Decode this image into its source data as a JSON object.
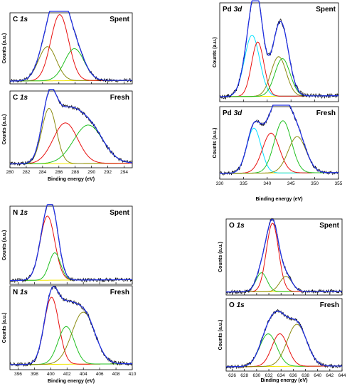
{
  "colors": {
    "envelope": "#1f2fe0",
    "raw": "#000000",
    "baseline": "#f2e600",
    "red": "#e8100e",
    "green": "#20c020",
    "olive": "#8b8b10",
    "cyan": "#00e0ff"
  },
  "chart_data": [
    {
      "type": "line",
      "group": "C 1s",
      "xlabel": "Binding energy (eV)",
      "ylabel": "Counts (a.u.)",
      "xlim": [
        280,
        295
      ],
      "xticks": [
        280,
        282,
        284,
        286,
        288,
        290,
        292,
        294
      ],
      "panels": [
        {
          "element": "C",
          "orbital": "1s",
          "state": "Spent",
          "baseline": 0.04,
          "peaks": [
            {
              "color": "olive",
              "center": 284.6,
              "height": 0.48,
              "width": 1.1
            },
            {
              "color": "red",
              "center": 286.1,
              "height": 0.93,
              "width": 1.1
            },
            {
              "color": "green",
              "center": 287.9,
              "height": 0.45,
              "width": 1.2
            }
          ]
        },
        {
          "element": "C",
          "orbital": "1s",
          "state": "Fresh",
          "baseline": 0.05,
          "peaks": [
            {
              "color": "olive",
              "center": 284.8,
              "height": 0.72,
              "width": 0.9
            },
            {
              "color": "red",
              "center": 286.8,
              "height": 0.53,
              "width": 1.5
            },
            {
              "color": "green",
              "center": 289.6,
              "height": 0.5,
              "width": 1.8
            }
          ]
        }
      ]
    },
    {
      "type": "line",
      "group": "Pd 3d",
      "xlabel": "Binding energy (eV)",
      "ylabel": "Counts (a.u.)",
      "xlim": [
        330,
        355
      ],
      "xticks": [
        330,
        335,
        340,
        345,
        350,
        355
      ],
      "panels": [
        {
          "element": "Pd",
          "orbital": "3d",
          "state": "Spent",
          "baseline": 0.05,
          "peaks": [
            {
              "color": "cyan",
              "center": 336.8,
              "height": 0.62,
              "width": 1.6
            },
            {
              "color": "red",
              "center": 338.0,
              "height": 0.55,
              "width": 1.3
            },
            {
              "color": "olive",
              "center": 342.4,
              "height": 0.4,
              "width": 1.6
            },
            {
              "color": "green",
              "center": 343.2,
              "height": 0.38,
              "width": 1.6
            }
          ]
        },
        {
          "element": "Pd",
          "orbital": "3d",
          "state": "Fresh",
          "baseline": 0.08,
          "peaks": [
            {
              "color": "cyan",
              "center": 337.2,
              "height": 0.62,
              "width": 1.5
            },
            {
              "color": "red",
              "center": 340.8,
              "height": 0.55,
              "width": 1.8
            },
            {
              "color": "green",
              "center": 343.3,
              "height": 0.72,
              "width": 1.8
            },
            {
              "color": "olive",
              "center": 346.3,
              "height": 0.5,
              "width": 1.9
            }
          ]
        }
      ]
    },
    {
      "type": "line",
      "group": "N 1s",
      "xlabel": "Binding energy (eV)",
      "ylabel": "Counts (a.u.)",
      "xlim": [
        395,
        410
      ],
      "xticks": [
        396,
        398,
        400,
        402,
        404,
        406,
        408,
        410
      ],
      "panels": [
        {
          "element": "N",
          "orbital": "1s",
          "state": "Spent",
          "baseline": 0.05,
          "peaks": [
            {
              "color": "red",
              "center": 399.6,
              "height": 0.82,
              "width": 0.9
            },
            {
              "color": "green",
              "center": 400.5,
              "height": 0.35,
              "width": 0.7
            }
          ]
        },
        {
          "element": "N",
          "orbital": "1s",
          "state": "Fresh",
          "baseline": 0.06,
          "peaks": [
            {
              "color": "red",
              "center": 400.1,
              "height": 0.8,
              "width": 0.9
            },
            {
              "color": "green",
              "center": 401.9,
              "height": 0.45,
              "width": 1.0
            },
            {
              "color": "olive",
              "center": 404.0,
              "height": 0.62,
              "width": 1.4
            }
          ]
        }
      ]
    },
    {
      "type": "line",
      "group": "O 1s",
      "xlabel": "Binding energy (eV)",
      "ylabel": "Counts (a.u.)",
      "xlim": [
        625,
        644
      ],
      "xticks": [
        626,
        628,
        630,
        632,
        634,
        636,
        638,
        640,
        642,
        644
      ],
      "panels": [
        {
          "element": "O",
          "orbital": "1s",
          "state": "Spent",
          "baseline": 0.04,
          "peaks": [
            {
              "color": "green",
              "center": 630.8,
              "height": 0.25,
              "width": 0.9
            },
            {
              "color": "red",
              "center": 632.6,
              "height": 0.9,
              "width": 1.0
            },
            {
              "color": "olive",
              "center": 634.8,
              "height": 0.2,
              "width": 1.0
            }
          ]
        },
        {
          "element": "O",
          "orbital": "1s",
          "state": "Fresh",
          "baseline": 0.06,
          "peaks": [
            {
              "color": "green",
              "center": 631.9,
              "height": 0.45,
              "width": 1.4
            },
            {
              "color": "red",
              "center": 633.8,
              "height": 0.45,
              "width": 1.3
            },
            {
              "color": "olive",
              "center": 636.6,
              "height": 0.58,
              "width": 1.6
            }
          ]
        }
      ]
    }
  ]
}
